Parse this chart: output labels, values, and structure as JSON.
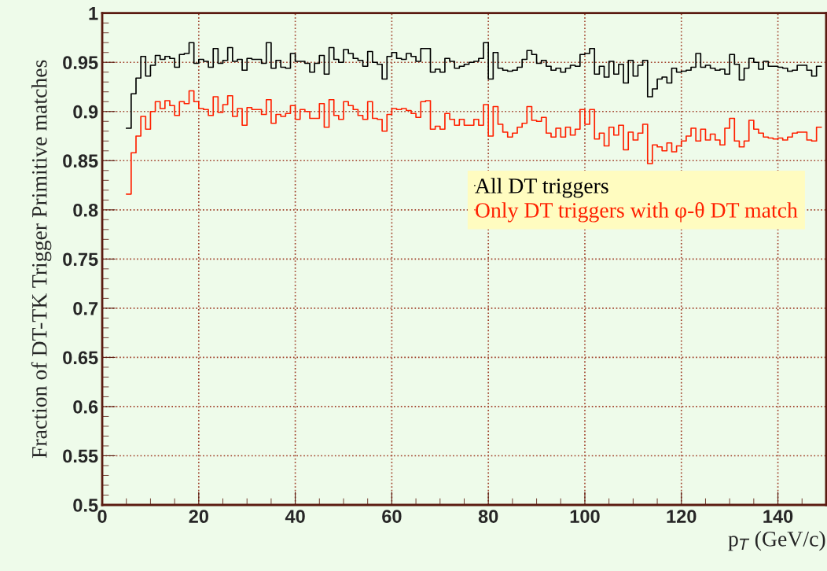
{
  "chart_data": {
    "type": "step",
    "ylabel": "Fraction of DT-TK Trigger Primitive matches",
    "xlabel": "p$_{T}$ (GeV/c)",
    "x": [
      5,
      6,
      7,
      8,
      9,
      10,
      11,
      12,
      13,
      14,
      15,
      16,
      17,
      18,
      19,
      20,
      21,
      22,
      23,
      24,
      25,
      26,
      27,
      28,
      29,
      30,
      31,
      32,
      33,
      34,
      35,
      36,
      37,
      38,
      39,
      40,
      41,
      42,
      43,
      44,
      45,
      46,
      47,
      48,
      49,
      50,
      51,
      52,
      53,
      54,
      55,
      56,
      57,
      58,
      59,
      60,
      61,
      62,
      63,
      64,
      65,
      66,
      67,
      68,
      69,
      70,
      71,
      72,
      73,
      74,
      75,
      76,
      77,
      78,
      79,
      80,
      81,
      82,
      83,
      84,
      85,
      86,
      87,
      88,
      89,
      90,
      91,
      92,
      93,
      94,
      95,
      96,
      97,
      98,
      99,
      100,
      101,
      102,
      103,
      104,
      105,
      106,
      107,
      108,
      109,
      110,
      111,
      112,
      113,
      114,
      115,
      116,
      117,
      118,
      119,
      120,
      121,
      122,
      123,
      124,
      125,
      126,
      127,
      128,
      129,
      130,
      131,
      132,
      133,
      134,
      135,
      136,
      137,
      138,
      139,
      140,
      141,
      142,
      143,
      144,
      145,
      146,
      147,
      148,
      149
    ],
    "series": [
      {
        "name": "All DT triggers",
        "color": "#000000",
        "values": [
          0.883,
          0.918,
          0.934,
          0.956,
          0.936,
          0.947,
          0.957,
          0.953,
          0.956,
          0.954,
          0.945,
          0.958,
          0.959,
          0.97,
          0.949,
          0.953,
          0.951,
          0.945,
          0.964,
          0.949,
          0.952,
          0.965,
          0.951,
          0.953,
          0.942,
          0.954,
          0.953,
          0.953,
          0.949,
          0.97,
          0.944,
          0.952,
          0.945,
          0.944,
          0.959,
          0.951,
          0.951,
          0.949,
          0.94,
          0.949,
          0.957,
          0.938,
          0.965,
          0.953,
          0.95,
          0.963,
          0.959,
          0.954,
          0.952,
          0.946,
          0.961,
          0.95,
          0.948,
          0.933,
          0.956,
          0.96,
          0.954,
          0.953,
          0.959,
          0.956,
          0.951,
          0.964,
          0.964,
          0.94,
          0.943,
          0.94,
          0.954,
          0.951,
          0.944,
          0.946,
          0.948,
          0.95,
          0.951,
          0.954,
          0.97,
          0.933,
          0.96,
          0.944,
          0.942,
          0.941,
          0.942,
          0.945,
          0.953,
          0.962,
          0.958,
          0.949,
          0.952,
          0.946,
          0.942,
          0.944,
          0.94,
          0.944,
          0.947,
          0.946,
          0.958,
          0.959,
          0.964,
          0.938,
          0.946,
          0.935,
          0.951,
          0.938,
          0.948,
          0.929,
          0.952,
          0.936,
          0.947,
          0.952,
          0.915,
          0.923,
          0.933,
          0.935,
          0.929,
          0.944,
          0.94,
          0.941,
          0.942,
          0.945,
          0.959,
          0.945,
          0.947,
          0.944,
          0.942,
          0.943,
          0.938,
          0.958,
          0.948,
          0.932,
          0.944,
          0.954,
          0.95,
          0.943,
          0.951,
          0.946,
          0.946,
          0.945,
          0.944,
          0.941,
          0.942,
          0.947,
          0.947,
          0.942,
          0.936,
          0.946,
          0.946
        ]
      },
      {
        "name": "Only DT triggers with φ-θ DT match",
        "color": "#ff2000",
        "values": [
          0.816,
          0.858,
          0.875,
          0.895,
          0.882,
          0.9,
          0.91,
          0.903,
          0.911,
          0.906,
          0.896,
          0.91,
          0.908,
          0.921,
          0.91,
          0.903,
          0.902,
          0.896,
          0.915,
          0.899,
          0.907,
          0.916,
          0.895,
          0.903,
          0.886,
          0.904,
          0.902,
          0.902,
          0.897,
          0.912,
          0.888,
          0.897,
          0.895,
          0.898,
          0.906,
          0.892,
          0.902,
          0.9,
          0.893,
          0.893,
          0.908,
          0.884,
          0.912,
          0.896,
          0.892,
          0.91,
          0.906,
          0.902,
          0.896,
          0.892,
          0.91,
          0.893,
          0.892,
          0.88,
          0.897,
          0.903,
          0.902,
          0.903,
          0.901,
          0.898,
          0.894,
          0.91,
          0.911,
          0.882,
          0.885,
          0.882,
          0.898,
          0.892,
          0.886,
          0.892,
          0.886,
          0.886,
          0.892,
          0.886,
          0.907,
          0.875,
          0.905,
          0.887,
          0.879,
          0.874,
          0.878,
          0.884,
          0.888,
          0.905,
          0.891,
          0.89,
          0.894,
          0.878,
          0.874,
          0.883,
          0.874,
          0.884,
          0.876,
          0.882,
          0.902,
          0.887,
          0.902,
          0.872,
          0.878,
          0.865,
          0.884,
          0.876,
          0.886,
          0.861,
          0.879,
          0.871,
          0.878,
          0.887,
          0.847,
          0.866,
          0.864,
          0.86,
          0.868,
          0.859,
          0.865,
          0.87,
          0.875,
          0.883,
          0.87,
          0.882,
          0.871,
          0.877,
          0.871,
          0.866,
          0.883,
          0.893,
          0.87,
          0.864,
          0.87,
          0.891,
          0.882,
          0.878,
          0.874,
          0.873,
          0.872,
          0.873,
          0.871,
          0.874,
          0.878,
          0.879,
          0.879,
          0.871,
          0.87,
          0.884,
          0.884
        ]
      }
    ],
    "xlim": [
      0,
      150
    ],
    "xticks": [
      0,
      20,
      40,
      60,
      80,
      100,
      120,
      140
    ],
    "ylim": [
      0.5,
      1.0
    ],
    "yticks": [
      0.5,
      0.55,
      0.6,
      0.65,
      0.7,
      0.75,
      0.8,
      0.85,
      0.9,
      0.95,
      1
    ],
    "grid": true,
    "legend": "right"
  }
}
